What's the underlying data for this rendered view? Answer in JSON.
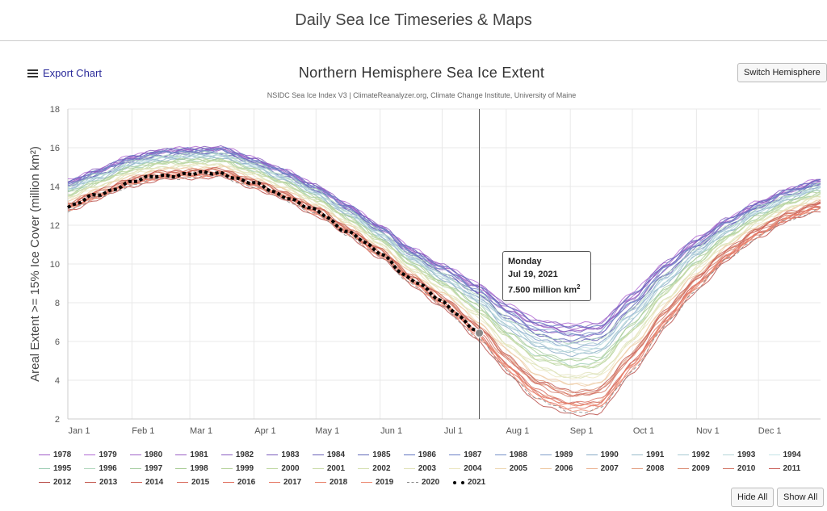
{
  "page": {
    "title": "Daily Sea Ice Timeseries & Maps"
  },
  "toolbar": {
    "export_label": "Export Chart",
    "switch_label": "Switch Hemisphere",
    "hide_all_label": "Hide All",
    "show_all_label": "Show All"
  },
  "chart_data": {
    "type": "line",
    "title": "Northern Hemisphere Sea Ice Extent",
    "subtitle": "NSIDC Sea Ice Index V3 | ClimateReanalyzer.org, Climate Change Institute, University of Maine",
    "ylabel": "Areal Extent >= 15% Ice Cover (million km²)",
    "xlabel": "",
    "ylim": [
      2,
      18
    ],
    "xlim": [
      1,
      365
    ],
    "y_ticks": [
      "2",
      "4",
      "6",
      "8",
      "10",
      "12",
      "14",
      "16",
      "18"
    ],
    "x_ticks": [
      {
        "label": "Jan 1",
        "day": 1
      },
      {
        "label": "Feb 1",
        "day": 32
      },
      {
        "label": "Mar 1",
        "day": 60
      },
      {
        "label": "Apr 1",
        "day": 91
      },
      {
        "label": "May 1",
        "day": 121
      },
      {
        "label": "Jun 1",
        "day": 152
      },
      {
        "label": "Jul 1",
        "day": 182
      },
      {
        "label": "Aug 1",
        "day": 213
      },
      {
        "label": "Sep 1",
        "day": 244
      },
      {
        "label": "Oct 1",
        "day": 274
      },
      {
        "label": "Nov 1",
        "day": 305
      },
      {
        "label": "Dec 1",
        "day": 335
      }
    ],
    "grid": true,
    "legend_position": "bottom",
    "series": [
      {
        "name": "1978",
        "color": "#a05bc7",
        "shift": 0.15
      },
      {
        "name": "1979",
        "color": "#b16ad3",
        "shift": 0.35
      },
      {
        "name": "1980",
        "color": "#a063c8",
        "shift": 0.2
      },
      {
        "name": "1981",
        "color": "#9b60c4",
        "shift": 0.0
      },
      {
        "name": "1982",
        "color": "#8a5cc0",
        "shift": 0.3
      },
      {
        "name": "1983",
        "color": "#7a5cbc",
        "shift": 0.15
      },
      {
        "name": "1984",
        "color": "#6a61b8",
        "shift": -0.2
      },
      {
        "name": "1985",
        "color": "#6068b8",
        "shift": -0.15
      },
      {
        "name": "1986",
        "color": "#5f74c0",
        "shift": 0.25
      },
      {
        "name": "1987",
        "color": "#6a7fc6",
        "shift": 0.0
      },
      {
        "name": "1988",
        "color": "#7590c8",
        "shift": 0.05
      },
      {
        "name": "1989",
        "color": "#809ec9",
        "shift": -0.35
      },
      {
        "name": "1990",
        "color": "#88aac6",
        "shift": -0.6
      },
      {
        "name": "1991",
        "color": "#98bccb",
        "shift": -0.5
      },
      {
        "name": "1992",
        "color": "#a6cad2",
        "shift": -0.3
      },
      {
        "name": "1993",
        "color": "#b4d6d9",
        "shift": -0.55
      },
      {
        "name": "1994",
        "color": "#c4e3e6",
        "shift": -0.4
      },
      {
        "name": "1995",
        "color": "#9fcfb6",
        "shift": -0.9
      },
      {
        "name": "1996",
        "color": "#b3d8bf",
        "shift": -0.2
      },
      {
        "name": "1997",
        "color": "#a8cfa4",
        "shift": -0.75
      },
      {
        "name": "1998",
        "color": "#a9cc96",
        "shift": -0.8
      },
      {
        "name": "1999",
        "color": "#b6d39c",
        "shift": -1.0
      },
      {
        "name": "2000",
        "color": "#c0d8a2",
        "shift": -1.0
      },
      {
        "name": "2001",
        "color": "#cbdcab",
        "shift": -0.95
      },
      {
        "name": "2002",
        "color": "#d6e0b2",
        "shift": -1.3
      },
      {
        "name": "2003",
        "color": "#e2e3bb",
        "shift": -1.25
      },
      {
        "name": "2004",
        "color": "#ece7c2",
        "shift": -1.35
      },
      {
        "name": "2005",
        "color": "#eed8b4",
        "shift": -1.55
      },
      {
        "name": "2006",
        "color": "#eec9a4",
        "shift": -1.55
      },
      {
        "name": "2007",
        "color": "#ecb596",
        "shift": -2.15
      },
      {
        "name": "2008",
        "color": "#e4a286",
        "shift": -1.85
      },
      {
        "name": "2009",
        "color": "#dc8f77",
        "shift": -1.75
      },
      {
        "name": "2010",
        "color": "#d47b6b",
        "shift": -1.9
      },
      {
        "name": "2011",
        "color": "#cc6660",
        "shift": -2.15
      },
      {
        "name": "2012",
        "color": "#b84d49",
        "shift": -2.5
      },
      {
        "name": "2013",
        "color": "#c45a50",
        "shift": -1.75
      },
      {
        "name": "2014",
        "color": "#cf6256",
        "shift": -1.85
      },
      {
        "name": "2015",
        "color": "#d96b5d",
        "shift": -2.1
      },
      {
        "name": "2016",
        "color": "#e07060",
        "shift": -2.3
      },
      {
        "name": "2017",
        "color": "#e67a66",
        "shift": -2.2
      },
      {
        "name": "2018",
        "color": "#e8826c",
        "shift": -2.2
      },
      {
        "name": "2019",
        "color": "#ec8a72",
        "shift": -2.35
      },
      {
        "name": "2020",
        "color": "#888888",
        "dash": true,
        "shift": -2.4
      },
      {
        "name": "2021",
        "color": "#000000",
        "dotted": true,
        "shift": -2.1,
        "end_day": 200
      }
    ],
    "baseline_curve": [
      [
        1,
        14.1
      ],
      [
        15,
        14.7
      ],
      [
        32,
        15.4
      ],
      [
        45,
        15.7
      ],
      [
        60,
        15.8
      ],
      [
        75,
        15.85
      ],
      [
        91,
        15.3
      ],
      [
        105,
        14.7
      ],
      [
        121,
        13.9
      ],
      [
        136,
        12.9
      ],
      [
        152,
        11.8
      ],
      [
        167,
        10.6
      ],
      [
        182,
        9.7
      ],
      [
        200,
        8.6
      ],
      [
        213,
        7.5
      ],
      [
        228,
        6.6
      ],
      [
        244,
        6.3
      ],
      [
        258,
        6.4
      ],
      [
        274,
        8.0
      ],
      [
        290,
        9.7
      ],
      [
        305,
        11.0
      ],
      [
        320,
        12.1
      ],
      [
        335,
        13.0
      ],
      [
        350,
        13.7
      ],
      [
        365,
        14.2
      ]
    ],
    "tooltip": {
      "day": 200,
      "weekday": "Monday",
      "date": "Jul 19, 2021",
      "value": "7.500 million km",
      "value_sup": "2"
    }
  }
}
